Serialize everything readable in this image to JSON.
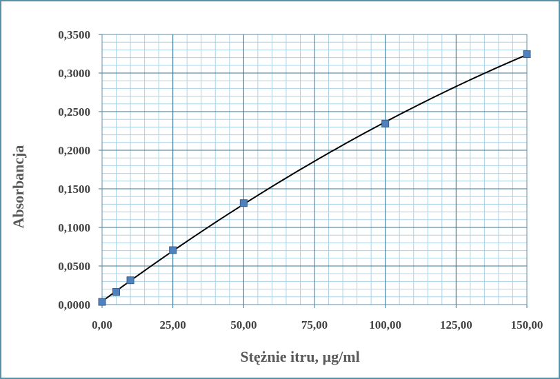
{
  "chart_data": {
    "type": "scatter",
    "title": "",
    "xlabel": "Stężnie itru, µg/ml",
    "ylabel": "Absorbancja",
    "xlim": [
      0,
      150
    ],
    "ylim": [
      0,
      0.35
    ],
    "x_ticks": [
      "0,00",
      "25,00",
      "50,00",
      "75,00",
      "100,00",
      "125,00",
      "150,00"
    ],
    "y_ticks": [
      "0,0000",
      "0,0500",
      "0,1000",
      "0,1500",
      "0,2000",
      "0,2500",
      "0,3000",
      "0,3500"
    ],
    "grid": true,
    "series": [
      {
        "marker": "square",
        "color": "#4f81bd",
        "x": [
          0,
          5,
          10,
          25,
          50,
          100,
          150
        ],
        "y": [
          0.0035,
          0.0165,
          0.0315,
          0.0705,
          0.1315,
          0.2345,
          0.3245
        ]
      }
    ],
    "trendline": {
      "type": "polynomial",
      "color": "#000000"
    }
  }
}
